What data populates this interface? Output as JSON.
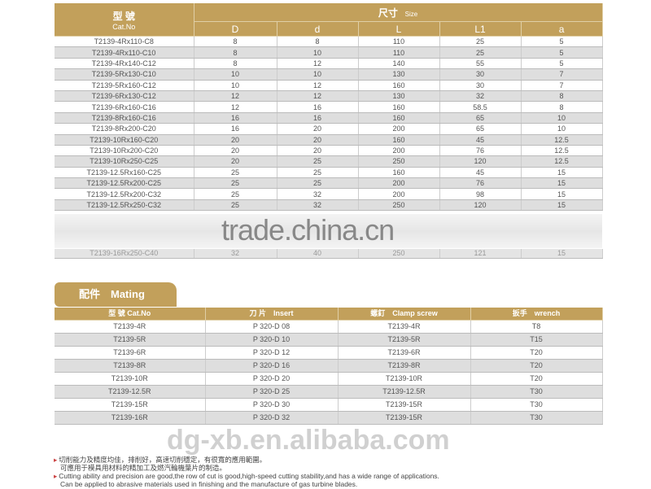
{
  "size_table": {
    "header": {
      "cat_cn": "型 號",
      "cat_en": "Cat.No",
      "size_cn": "尺寸",
      "size_en": "Size",
      "cols": [
        "D",
        "d",
        "L",
        "L1",
        "a"
      ]
    },
    "rows": [
      [
        "T2139-4Rx110-C8",
        "8",
        "8",
        "110",
        "25",
        "5"
      ],
      [
        "T2139-4Rx110-C10",
        "8",
        "10",
        "110",
        "25",
        "5"
      ],
      [
        "T2139-4Rx140-C12",
        "8",
        "12",
        "140",
        "55",
        "5"
      ],
      [
        "T2139-5Rx130-C10",
        "10",
        "10",
        "130",
        "30",
        "7"
      ],
      [
        "T2139-5Rx160-C12",
        "10",
        "12",
        "160",
        "30",
        "7"
      ],
      [
        "T2139-6Rx130-C12",
        "12",
        "12",
        "130",
        "32",
        "8"
      ],
      [
        "T2139-6Rx160-C16",
        "12",
        "16",
        "160",
        "58.5",
        "8"
      ],
      [
        "T2139-8Rx160-C16",
        "16",
        "16",
        "160",
        "65",
        "10"
      ],
      [
        "T2139-8Rx200-C20",
        "16",
        "20",
        "200",
        "65",
        "10"
      ],
      [
        "T2139-10Rx160-C20",
        "20",
        "20",
        "160",
        "45",
        "12.5"
      ],
      [
        "T2139-10Rx200-C20",
        "20",
        "20",
        "200",
        "76",
        "12.5"
      ],
      [
        "T2139-10Rx250-C25",
        "20",
        "25",
        "250",
        "120",
        "12.5"
      ],
      [
        "T2139-12.5Rx160-C25",
        "25",
        "25",
        "160",
        "45",
        "15"
      ],
      [
        "T2139-12.5Rx200-C25",
        "25",
        "25",
        "200",
        "76",
        "15"
      ],
      [
        "T2139-12.5Rx200-C32",
        "25",
        "32",
        "200",
        "98",
        "15"
      ],
      [
        "T2139-12.5Rx250-C32",
        "25",
        "32",
        "250",
        "120",
        "15"
      ]
    ],
    "last_row": [
      "T2139-16Rx250-C40",
      "32",
      "40",
      "250",
      "121",
      "15"
    ]
  },
  "watermark_top": "trade.china.cn",
  "mating": {
    "title": "配件　Mating",
    "headers": [
      "型 號 Cat.No",
      "刀 片　Insert",
      "螺釘　Clamp screw",
      "扳手　wrench"
    ],
    "rows": [
      [
        "T2139-4R",
        "P 320-D 08",
        "T2139-4R",
        "T8"
      ],
      [
        "T2139-5R",
        "P 320-D 10",
        "T2139-5R",
        "T15"
      ],
      [
        "T2139-6R",
        "P 320-D 12",
        "T2139-6R",
        "T20"
      ],
      [
        "T2139-8R",
        "P 320-D 16",
        "T2139-8R",
        "T20"
      ],
      [
        "T2139-10R",
        "P 320-D 20",
        "T2139-10R",
        "T20"
      ],
      [
        "T2139-12.5R",
        "P 320-D 25",
        "T2139-12.5R",
        "T30"
      ],
      [
        "T2139-15R",
        "P 320-D 30",
        "T2139-15R",
        "T30"
      ],
      [
        "T2139-16R",
        "P 320-D 32",
        "T2139-15R",
        "T30"
      ]
    ]
  },
  "watermark_bottom": "dg-xb.en.alibaba.com",
  "notes": {
    "cn1": "切削能力及精度均佳，排削好，高速切削穩定，有很寬的應用範圍。",
    "cn2": "可應用于模具用材料的精加工及燃汽輪機葉片的制造。",
    "en1": "Cutting ability and precision are good,the row of cut is good,high-speed cutting stability,and has a wide range of applications.",
    "en2": "Can be applied to abrasive materials used in finishing and the manufacture of gas turbine blades."
  },
  "colors": {
    "gold": "#c2a05b",
    "stripe": "#dedede"
  }
}
